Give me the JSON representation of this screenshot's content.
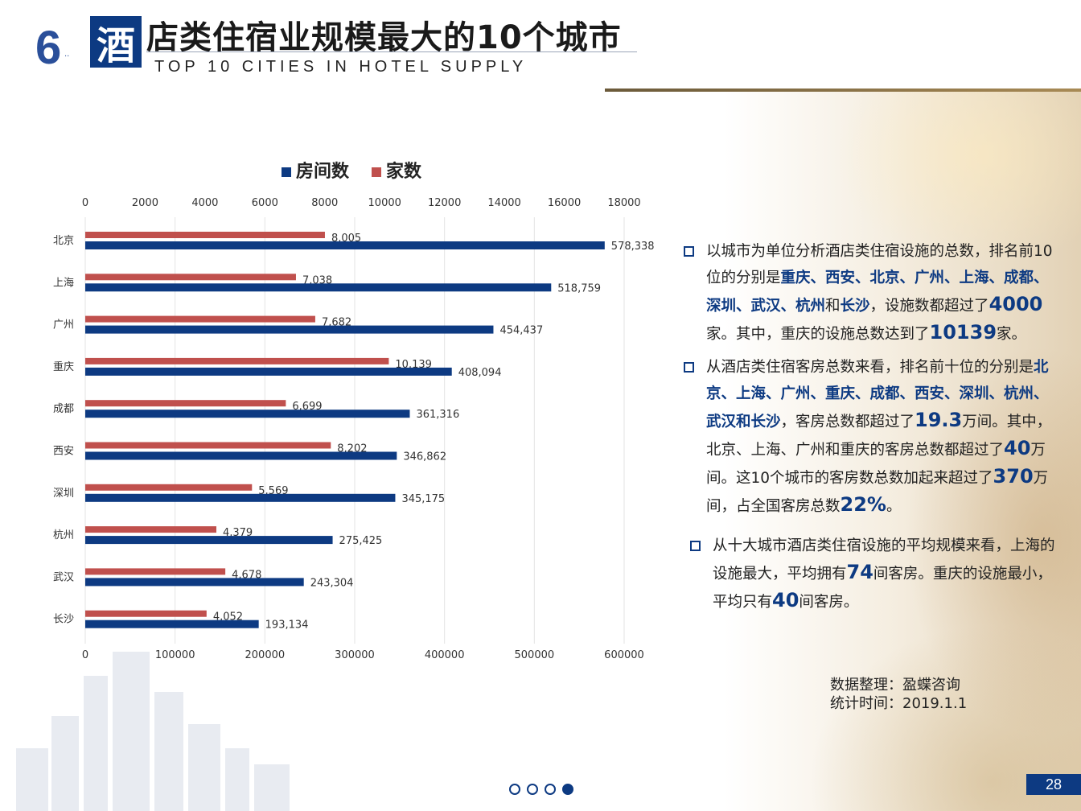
{
  "header": {
    "section_number": "6",
    "title_first_char": "酒",
    "title_rest": "店类住宿业规模最大的10个城市",
    "subtitle_en": "TOP 10 CITIES IN HOTEL SUPPLY"
  },
  "colors": {
    "navy": "#0d3a82",
    "rooms_bar": "#0d3a82",
    "hotels_bar": "#c0504d"
  },
  "chart_data": {
    "type": "bar",
    "orientation": "horizontal",
    "categories": [
      "北京",
      "上海",
      "广州",
      "重庆",
      "成都",
      "西安",
      "深圳",
      "杭州",
      "武汉",
      "长沙"
    ],
    "series": [
      {
        "name": "房间数",
        "axis": "bottom",
        "values": [
          578338,
          518759,
          454437,
          408094,
          361316,
          346862,
          345175,
          275425,
          243304,
          193134
        ],
        "labels": [
          "578,338",
          "518,759",
          "454,437",
          "408,094",
          "361,316",
          "346,862",
          "345,175",
          "275,425",
          "243,304",
          "193,134"
        ]
      },
      {
        "name": "家数",
        "axis": "top",
        "values": [
          8005,
          7038,
          7682,
          10139,
          6699,
          8202,
          5569,
          4379,
          4678,
          4052
        ],
        "labels": [
          "8,005",
          "7,038",
          "7,682",
          "10,139",
          "6,699",
          "8,202",
          "5,569",
          "4,379",
          "4,678",
          "4,052"
        ]
      }
    ],
    "top_axis": {
      "range": [
        0,
        18000
      ],
      "ticks": [
        "0",
        "2000",
        "4000",
        "6000",
        "8000",
        "10000",
        "12000",
        "14000",
        "16000",
        "18000"
      ]
    },
    "bottom_axis": {
      "range": [
        0,
        600000
      ],
      "ticks": [
        "0",
        "100000",
        "200000",
        "300000",
        "400000",
        "500000",
        "600000"
      ]
    },
    "legend": {
      "position": "top",
      "items": [
        "房间数",
        "家数"
      ]
    },
    "grid": true
  },
  "panel": {
    "p1": {
      "a": "以城市为单位分析酒店类住宿设施的总数，排名前10位的分别是",
      "b": "重庆、西安、北京、广州、上海、成都、深圳、武汉、杭州",
      "c": "和",
      "d": "长沙",
      "e": "，设施数都超过了",
      "f": "4000",
      "g": "家。其中，重庆的设施总数达到了",
      "h": "10139",
      "i": "家。"
    },
    "p2": {
      "a": "从酒店类住宿客房总数来看，排名前十位的分别是",
      "b": "北京、上海、广州、重庆、成都、西安、深圳、杭州、武汉和长沙",
      "c": "，客房总数都超过了",
      "d": "19.3",
      "e": "万间。其中，北京、上海、广州和重庆的客房总数都超过了",
      "f": "40",
      "g": "万间。这10个城市的客房数总数加起来超过了",
      "h": "370",
      "i": "万间，占全国客房总数",
      "j": "22%",
      "k": "。"
    },
    "p3": {
      "a": "从十大城市酒店类住宿设施的平均规模来看，上海的设施最大，平均拥有",
      "b": "74",
      "c": "间客房。重庆的设施最小，平均只有",
      "d": "40",
      "e": "间客房。"
    }
  },
  "source": {
    "line1": "数据整理：盈蝶咨询",
    "line2": "统计时间：2019.1.1"
  },
  "pagination": {
    "total": 4,
    "active": 4
  },
  "page_number": "28"
}
